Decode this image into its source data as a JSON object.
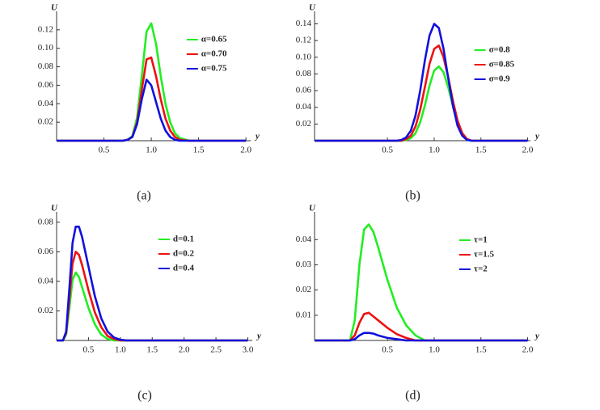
{
  "chart_data": [
    {
      "type": "line",
      "caption": "(a)",
      "x_label": "y",
      "y_label": "U",
      "legend": "upper right",
      "x": [
        0,
        0.7,
        0.75,
        0.8,
        0.85,
        0.9,
        0.95,
        1.0,
        1.05,
        1.1,
        1.15,
        1.2,
        1.25,
        1.3,
        1.4,
        2.0
      ],
      "series": [
        {
          "name": "α=0.65",
          "color": "#22ee22",
          "values": [
            0,
            0,
            0.001,
            0.005,
            0.025,
            0.07,
            0.118,
            0.127,
            0.105,
            0.07,
            0.04,
            0.02,
            0.008,
            0.003,
            0,
            0
          ]
        },
        {
          "name": "α=0.70",
          "color": "#ee1111",
          "values": [
            0,
            0,
            0.001,
            0.004,
            0.02,
            0.055,
            0.088,
            0.09,
            0.07,
            0.045,
            0.024,
            0.011,
            0.004,
            0.001,
            0,
            0
          ]
        },
        {
          "name": "α=0.75",
          "color": "#1111dd",
          "values": [
            0,
            0,
            0.001,
            0.004,
            0.018,
            0.045,
            0.066,
            0.06,
            0.042,
            0.024,
            0.011,
            0.004,
            0.001,
            0,
            0,
            0
          ]
        }
      ],
      "xlim": [
        0,
        2.05
      ],
      "ylim": [
        0,
        0.14
      ],
      "xticks": [
        0.5,
        {
          "value": 1,
          "label": "1.0"
        },
        1.5,
        {
          "value": 2,
          "label": "2.0"
        }
      ],
      "yticks": [
        0.02,
        0.04,
        0.06,
        0.08,
        {
          "value": 0.1,
          "label": "0.10"
        },
        0.12
      ]
    },
    {
      "type": "line",
      "caption": "(b)",
      "x_label": "y",
      "y_label": "U",
      "legend": "right",
      "x": [
        -0.28,
        0,
        0.6,
        0.65,
        0.7,
        0.75,
        0.8,
        0.85,
        0.9,
        0.95,
        1.0,
        1.05,
        1.1,
        1.15,
        1.2,
        1.25,
        1.3,
        1.35,
        1.4,
        2.0
      ],
      "series": [
        {
          "name": "σ=0.8",
          "color": "#22ee22",
          "values": [
            0,
            0,
            0,
            0,
            0.001,
            0.003,
            0.009,
            0.022,
            0.042,
            0.066,
            0.084,
            0.089,
            0.082,
            0.064,
            0.042,
            0.022,
            0.009,
            0.002,
            0,
            0
          ]
        },
        {
          "name": "σ=0.85",
          "color": "#ee1111",
          "values": [
            0,
            0,
            0,
            0,
            0.002,
            0.006,
            0.017,
            0.037,
            0.064,
            0.092,
            0.11,
            0.114,
            0.1,
            0.076,
            0.048,
            0.024,
            0.009,
            0.002,
            0,
            0
          ]
        },
        {
          "name": "σ=0.9",
          "color": "#1111dd",
          "values": [
            0,
            0,
            0,
            0.001,
            0.004,
            0.012,
            0.03,
            0.06,
            0.096,
            0.126,
            0.14,
            0.135,
            0.11,
            0.075,
            0.042,
            0.018,
            0.006,
            0.001,
            0,
            0
          ]
        }
      ],
      "xlim": [
        -0.28,
        2.03
      ],
      "ylim": [
        0,
        0.155
      ],
      "xticks": [
        0.5,
        {
          "value": 1,
          "label": "1.0"
        },
        1.5,
        {
          "value": 2,
          "label": "2.0"
        }
      ],
      "yticks": [
        0.02,
        0.04,
        0.06,
        0.08,
        {
          "value": 0.1,
          "label": "0.10"
        },
        0.12,
        0.14
      ]
    },
    {
      "type": "line",
      "caption": "(c)",
      "x_label": "y",
      "y_label": "U",
      "legend": "upper center",
      "x": [
        0,
        0.1,
        0.15,
        0.2,
        0.25,
        0.3,
        0.35,
        0.4,
        0.5,
        0.6,
        0.7,
        0.8,
        0.9,
        1.0,
        1.1,
        3.0
      ],
      "series": [
        {
          "name": "d=0.1",
          "color": "#22ee22",
          "values": [
            0,
            0,
            0.004,
            0.022,
            0.041,
            0.046,
            0.043,
            0.036,
            0.022,
            0.011,
            0.004,
            0.001,
            0,
            0,
            0,
            0
          ]
        },
        {
          "name": "d=0.2",
          "color": "#ee1111",
          "values": [
            0,
            0,
            0.005,
            0.028,
            0.052,
            0.06,
            0.058,
            0.051,
            0.034,
            0.019,
            0.009,
            0.003,
            0.001,
            0,
            0,
            0
          ]
        },
        {
          "name": "d=0.4",
          "color": "#1111dd",
          "values": [
            0,
            0,
            0.006,
            0.035,
            0.066,
            0.077,
            0.077,
            0.07,
            0.05,
            0.03,
            0.015,
            0.006,
            0.002,
            0.0005,
            0,
            0
          ]
        }
      ],
      "xlim": [
        0,
        3.07
      ],
      "ylim": [
        0,
        0.087
      ],
      "xticks": [
        0.5,
        {
          "value": 1,
          "label": "1.0"
        },
        1.5,
        {
          "value": 2,
          "label": "2.0"
        },
        2.5,
        {
          "value": 3,
          "label": "3.0"
        }
      ],
      "yticks": [
        0.02,
        0.04,
        0.06,
        0.08
      ]
    },
    {
      "type": "line",
      "caption": "(d)",
      "x_label": "y",
      "y_label": "U",
      "legend": "upper right",
      "x": [
        -0.28,
        0,
        0.1,
        0.15,
        0.2,
        0.25,
        0.3,
        0.35,
        0.4,
        0.5,
        0.6,
        0.7,
        0.8,
        0.9,
        2.0
      ],
      "series": [
        {
          "name": "τ=1",
          "color": "#22ee22",
          "values": [
            0,
            0,
            0,
            0.008,
            0.03,
            0.044,
            0.046,
            0.043,
            0.037,
            0.024,
            0.013,
            0.006,
            0.002,
            0,
            0
          ]
        },
        {
          "name": "τ=1.5",
          "color": "#ee1111",
          "values": [
            0,
            0,
            0,
            0.002,
            0.007,
            0.0105,
            0.011,
            0.0095,
            0.008,
            0.005,
            0.0025,
            0.001,
            0,
            0,
            0
          ]
        },
        {
          "name": "τ=2",
          "color": "#1111dd",
          "values": [
            0,
            0,
            0,
            0.0005,
            0.002,
            0.003,
            0.003,
            0.0027,
            0.002,
            0.001,
            0.0005,
            0,
            0,
            0,
            0
          ]
        }
      ],
      "xlim": [
        -0.28,
        2.03
      ],
      "ylim": [
        0,
        0.051
      ],
      "xticks": [
        0.5,
        {
          "value": 1,
          "label": "1.0"
        },
        1.5,
        {
          "value": 2,
          "label": "2.0"
        }
      ],
      "yticks": [
        0.01,
        0.02,
        0.03,
        0.04
      ]
    }
  ]
}
